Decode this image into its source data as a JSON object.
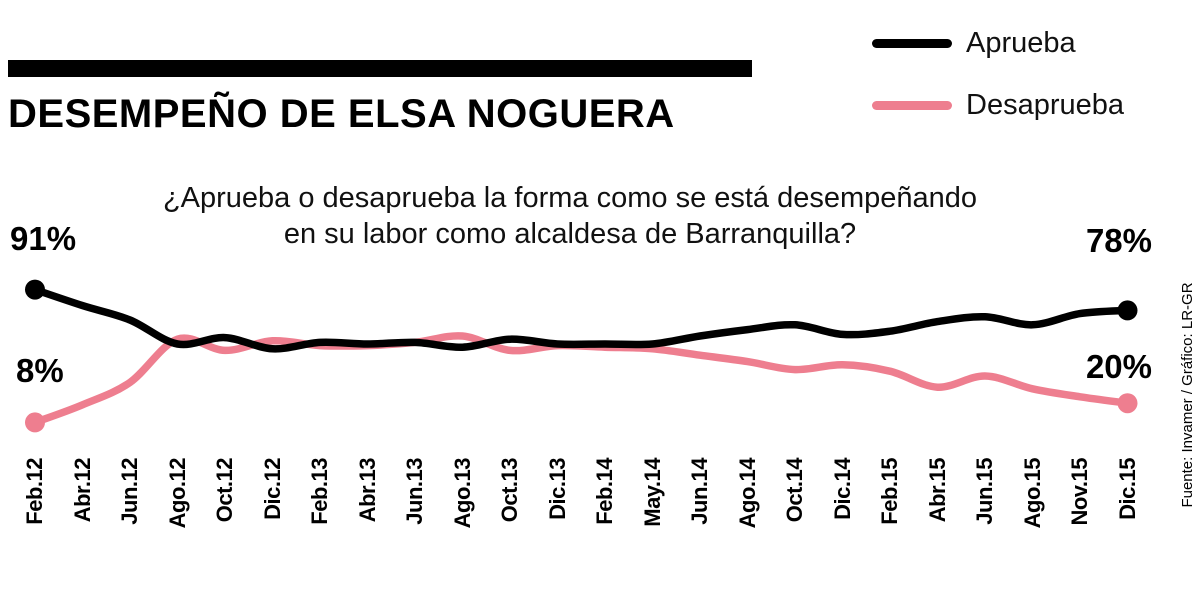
{
  "header": {
    "title": "DESEMPEÑO DE ELSA NOGUERA"
  },
  "legend": [
    {
      "label": "Aprueba",
      "color": "#000000"
    },
    {
      "label": "Desaprueba",
      "color": "#ee7e8f"
    }
  ],
  "question": {
    "line1": "¿Aprueba o desaprueba la forma como se está desempeñando",
    "line2": "en su labor como alcaldesa de Barranquilla?"
  },
  "source": "Fuente: Invamer  / Gráfico: LR-GR",
  "chart_data": {
    "type": "line",
    "title": "Desempeño de Elsa Noguera",
    "categories": [
      "Feb.12",
      "Abr.12",
      "Jun.12",
      "Ago.12",
      "Oct.12",
      "Dic.12",
      "Feb.13",
      "Abr.13",
      "Jun.13",
      "Ago.13",
      "Oct.13",
      "Dic.13",
      "Feb.14",
      "May.14",
      "Jun.14",
      "Ago.14",
      "Oct.14",
      "Dic.14",
      "Feb.15",
      "Abr.15",
      "Jun.15",
      "Ago.15",
      "Nov.15",
      "Dic.15"
    ],
    "series": [
      {
        "name": "Aprueba",
        "color": "#000000",
        "values": [
          91,
          81,
          72,
          57,
          61,
          54,
          58,
          57,
          58,
          55,
          60,
          57,
          57,
          57,
          62,
          66,
          69,
          63,
          65,
          71,
          74,
          69,
          76,
          78
        ]
      },
      {
        "name": "Desaprueba",
        "color": "#ee7e8f",
        "values": [
          8,
          19,
          33,
          60,
          53,
          59,
          56,
          56,
          58,
          62,
          53,
          56,
          55,
          54,
          50,
          46,
          41,
          44,
          40,
          30,
          37,
          29,
          24,
          20
        ]
      }
    ],
    "endpoint_labels": {
      "aprueba_start": "91%",
      "desaprueba_start": "8%",
      "aprueba_end": "78%",
      "desaprueba_end": "20%"
    },
    "ylim": [
      0,
      100
    ],
    "grid": false,
    "legend_position": "top-right"
  }
}
